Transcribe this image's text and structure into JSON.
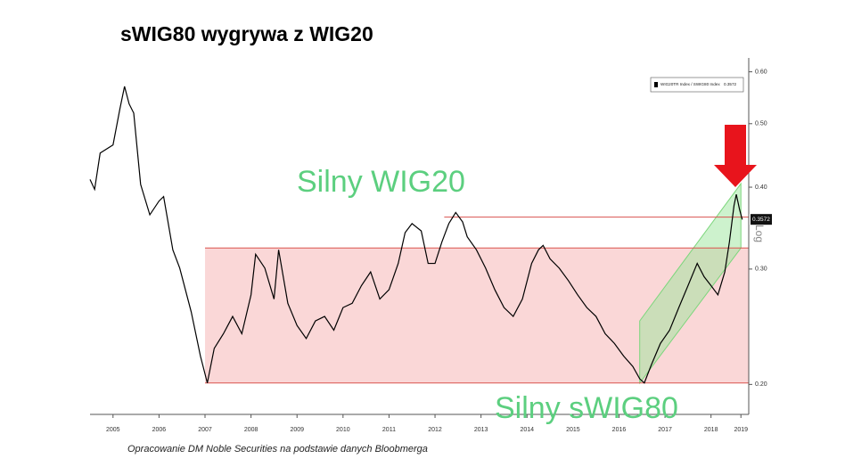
{
  "chart_data": {
    "type": "line",
    "title": "sWIG80 wygrywa z WIG20",
    "annotations": [
      "Silny WIG20",
      "Silny sWIG80"
    ],
    "source": "Opracowanie DM Noble Securities  na podstawie danych Bloobmerga",
    "scale_label": "Log",
    "log_y": true,
    "xlim": [
      2005,
      2019.32
    ],
    "ylim": [
      0.18,
      0.63
    ],
    "xticks": [
      {
        "value": 2005.5,
        "label": "2005"
      },
      {
        "value": 2006.5,
        "label": "2006"
      },
      {
        "value": 2007.5,
        "label": "2007"
      },
      {
        "value": 2008.5,
        "label": "2008"
      },
      {
        "value": 2009.5,
        "label": "2009"
      },
      {
        "value": 2010.5,
        "label": "2010"
      },
      {
        "value": 2011.5,
        "label": "2011"
      },
      {
        "value": 2012.5,
        "label": "2012"
      },
      {
        "value": 2013.5,
        "label": "2013"
      },
      {
        "value": 2014.5,
        "label": "2014"
      },
      {
        "value": 2015.5,
        "label": "2015"
      },
      {
        "value": 2016.5,
        "label": "2016"
      },
      {
        "value": 2017.5,
        "label": "2017"
      },
      {
        "value": 2018.5,
        "label": "2018"
      },
      {
        "value": 2019.15,
        "label": "2019"
      }
    ],
    "yticks": [
      {
        "value": 0.2,
        "label": "0.20"
      },
      {
        "value": 0.3,
        "label": "0.30"
      },
      {
        "value": 0.4,
        "label": "0.40"
      },
      {
        "value": 0.5,
        "label": "0.50"
      },
      {
        "value": 0.6,
        "label": "0.60"
      }
    ],
    "x": [
      2005.0,
      2005.1,
      2005.22,
      2005.5,
      2005.65,
      2005.75,
      2005.85,
      2005.95,
      2006.1,
      2006.3,
      2006.5,
      2006.6,
      2006.8,
      2006.95,
      2007.2,
      2007.4,
      2007.55,
      2007.7,
      2007.9,
      2008.1,
      2008.3,
      2008.5,
      2008.6,
      2008.8,
      2009.0,
      2009.1,
      2009.3,
      2009.5,
      2009.7,
      2009.9,
      2010.1,
      2010.3,
      2010.5,
      2010.7,
      2010.9,
      2011.1,
      2011.3,
      2011.5,
      2011.7,
      2011.85,
      2012.0,
      2012.2,
      2012.35,
      2012.5,
      2012.65,
      2012.8,
      2012.95,
      2013.1,
      2013.2,
      2013.4,
      2013.6,
      2013.8,
      2014.0,
      2014.2,
      2014.4,
      2014.6,
      2014.75,
      2014.85,
      2015.0,
      2015.2,
      2015.4,
      2015.6,
      2015.8,
      2016.0,
      2016.2,
      2016.4,
      2016.6,
      2016.8,
      2016.95,
      2017.05,
      2017.2,
      2017.4,
      2017.6,
      2017.8,
      2018.0,
      2018.2,
      2018.35,
      2018.5,
      2018.65,
      2018.8,
      2018.9,
      2019.0,
      2019.05,
      2019.12,
      2019.18
    ],
    "series": [
      {
        "name": "WIG20TR Index / SWIG80 Index",
        "color": "#000000",
        "values": [
          0.411,
          0.397,
          0.451,
          0.464,
          0.527,
          0.57,
          0.536,
          0.519,
          0.404,
          0.363,
          0.381,
          0.387,
          0.321,
          0.301,
          0.258,
          0.221,
          0.201,
          0.227,
          0.239,
          0.254,
          0.239,
          0.274,
          0.316,
          0.301,
          0.27,
          0.321,
          0.266,
          0.246,
          0.235,
          0.25,
          0.254,
          0.242,
          0.262,
          0.266,
          0.283,
          0.297,
          0.27,
          0.279,
          0.306,
          0.341,
          0.352,
          0.343,
          0.306,
          0.306,
          0.33,
          0.352,
          0.366,
          0.354,
          0.336,
          0.321,
          0.301,
          0.279,
          0.262,
          0.254,
          0.27,
          0.306,
          0.321,
          0.326,
          0.311,
          0.301,
          0.288,
          0.274,
          0.262,
          0.254,
          0.239,
          0.231,
          0.221,
          0.213,
          0.204,
          0.201,
          0.214,
          0.231,
          0.242,
          0.262,
          0.283,
          0.306,
          0.292,
          0.283,
          0.274,
          0.297,
          0.33,
          0.375,
          0.39,
          0.37,
          0.357
        ]
      }
    ],
    "last_value": 0.3572,
    "reference_lines": [
      0.36,
      0.323,
      0.201
    ],
    "range_box": {
      "x": [
        2007.5,
        2019.32
      ],
      "y": [
        0.201,
        0.323
      ]
    },
    "channel": {
      "x": [
        2016.95,
        2019.15
      ],
      "lower": [
        0.201,
        0.323
      ],
      "upper": [
        0.25,
        0.405
      ]
    }
  }
}
